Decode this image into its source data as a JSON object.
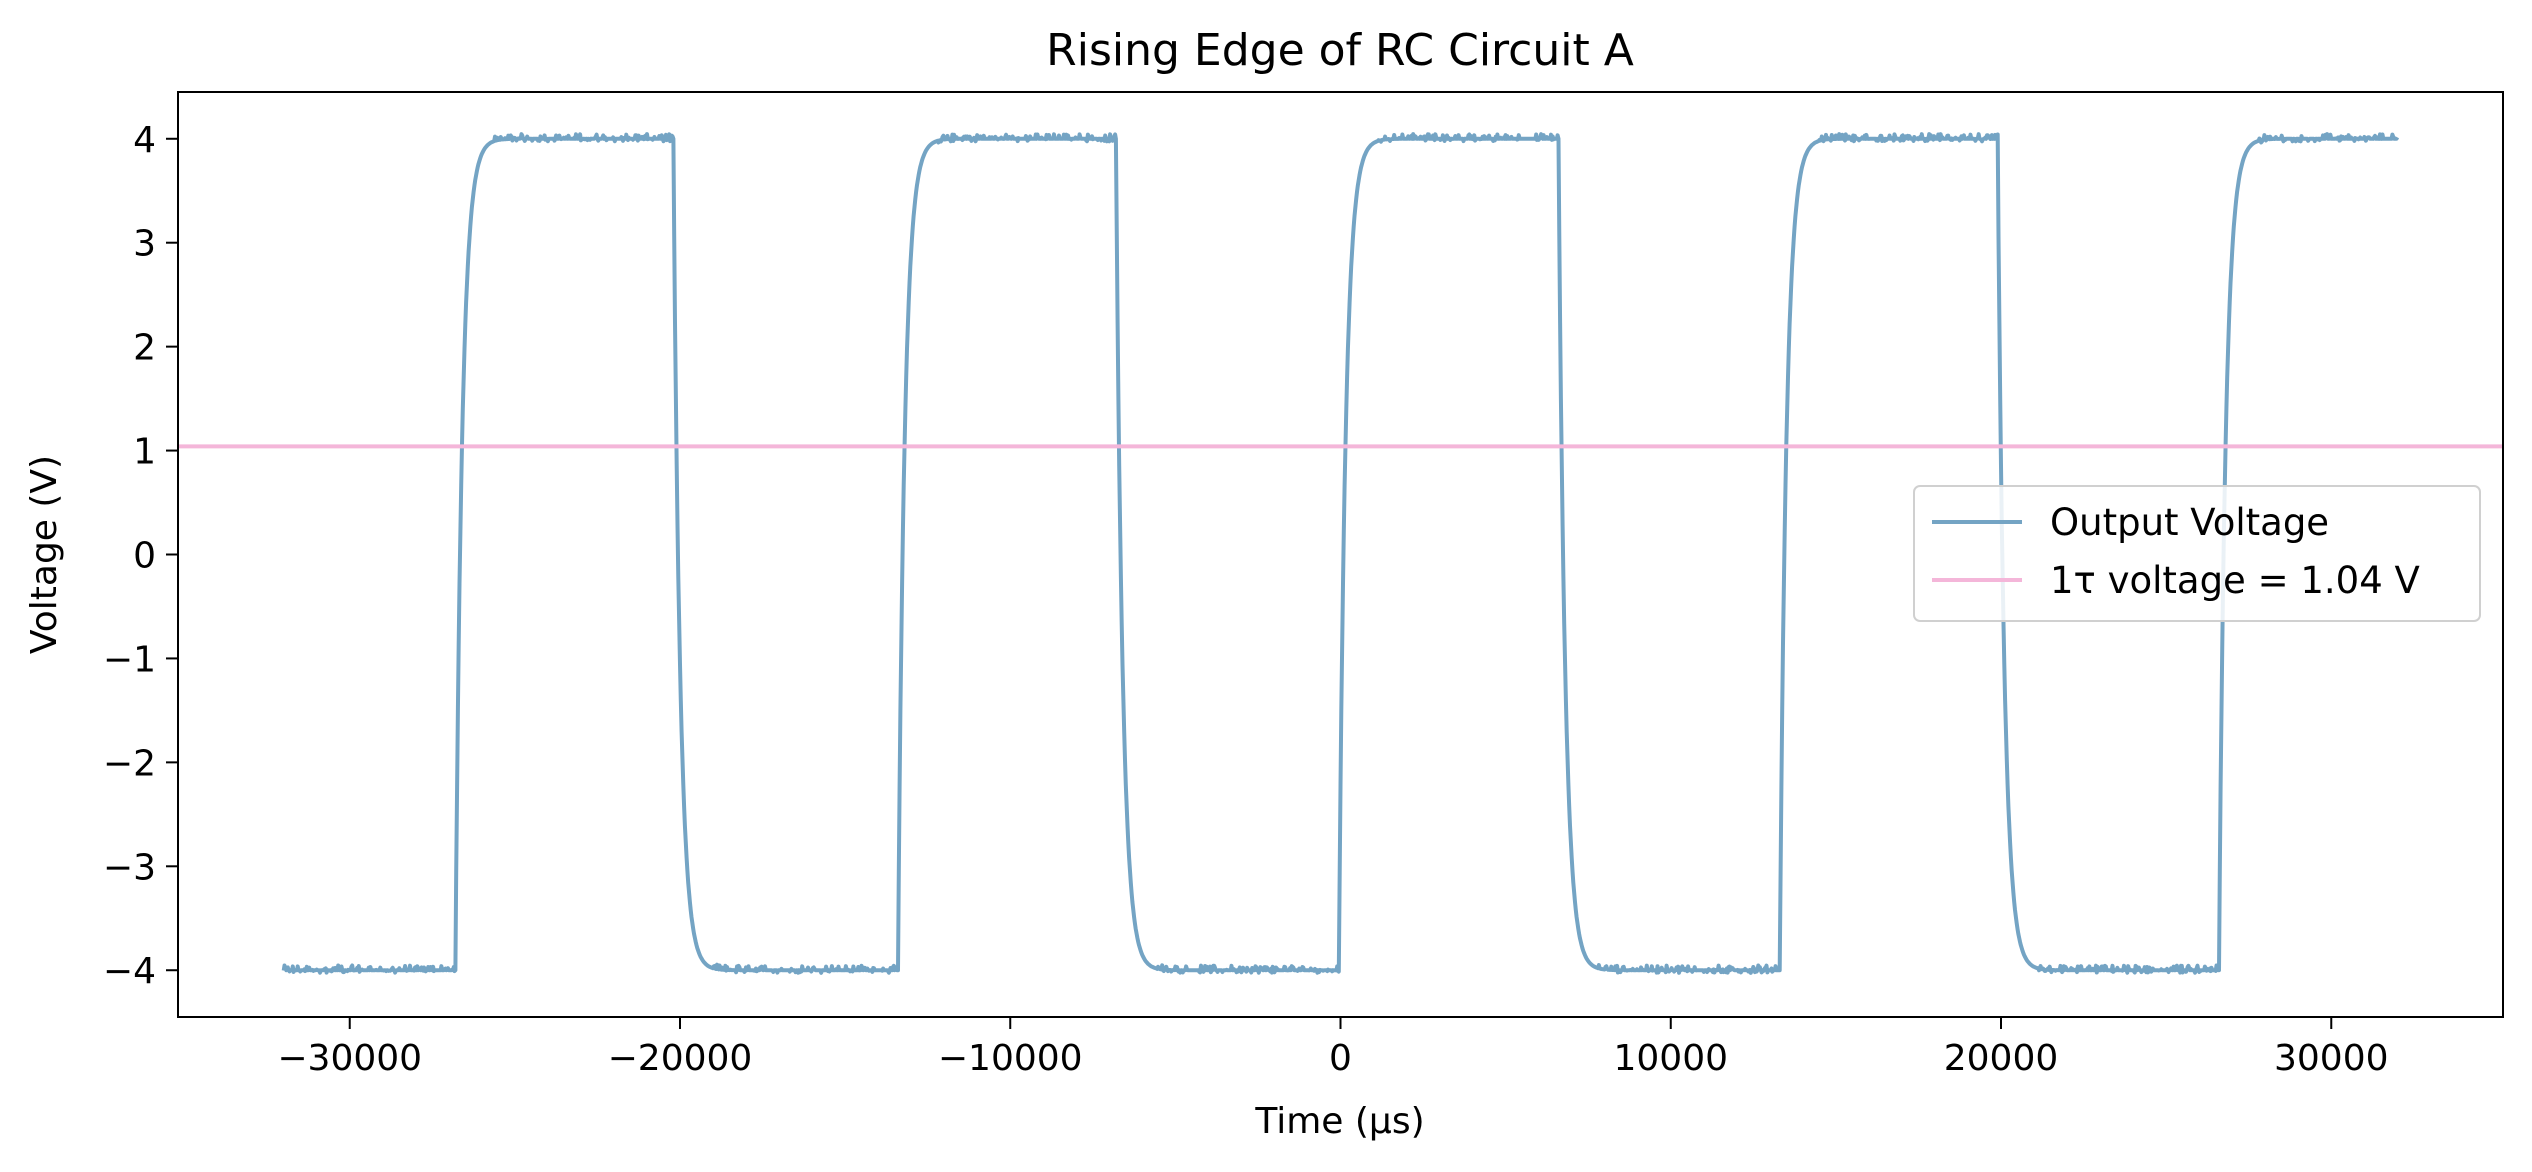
{
  "chart_data": {
    "type": "line",
    "title": "Rising Edge of RC Circuit A",
    "xlabel": "Time (µs)",
    "ylabel": "Voltage (V)",
    "xlim": [
      -35200,
      35200
    ],
    "ylim": [
      -4.45,
      4.45
    ],
    "xticks": [
      -30000,
      -20000,
      -10000,
      0,
      10000,
      20000,
      30000
    ],
    "xtick_labels": [
      "−30000",
      "−20000",
      "−10000",
      "0",
      "10000",
      "20000",
      "30000"
    ],
    "yticks": [
      4,
      3,
      2,
      1,
      0,
      -1,
      -2,
      -3,
      -4
    ],
    "ytick_labels": [
      "4",
      "3",
      "2",
      "1",
      "0",
      "−1",
      "−2",
      "−3",
      "−4"
    ],
    "grid": false,
    "legend_position": "center-right",
    "series": [
      {
        "name": "Output Voltage",
        "kind": "square_wave_rc",
        "color": "#74a4c4",
        "x_start": -32000,
        "x_end": 32000,
        "start_level": -4.0,
        "high": 4.0,
        "low": -4.0,
        "transitions": [
          {
            "t": -26800,
            "direction": "rise"
          },
          {
            "t": -20200,
            "direction": "fall"
          },
          {
            "t": -13400,
            "direction": "rise"
          },
          {
            "t": -6800,
            "direction": "fall"
          },
          {
            "t": -50,
            "direction": "rise"
          },
          {
            "t": 6600,
            "direction": "fall"
          },
          {
            "t": 13300,
            "direction": "rise"
          },
          {
            "t": 19900,
            "direction": "fall"
          },
          {
            "t": 26600,
            "direction": "rise"
          }
        ],
        "time_constant": 200,
        "noise_amplitude": 0.05
      },
      {
        "name": "1τ voltage = 1.04 V",
        "kind": "hline",
        "y": 1.04,
        "color": "#f4b6d9"
      }
    ]
  }
}
